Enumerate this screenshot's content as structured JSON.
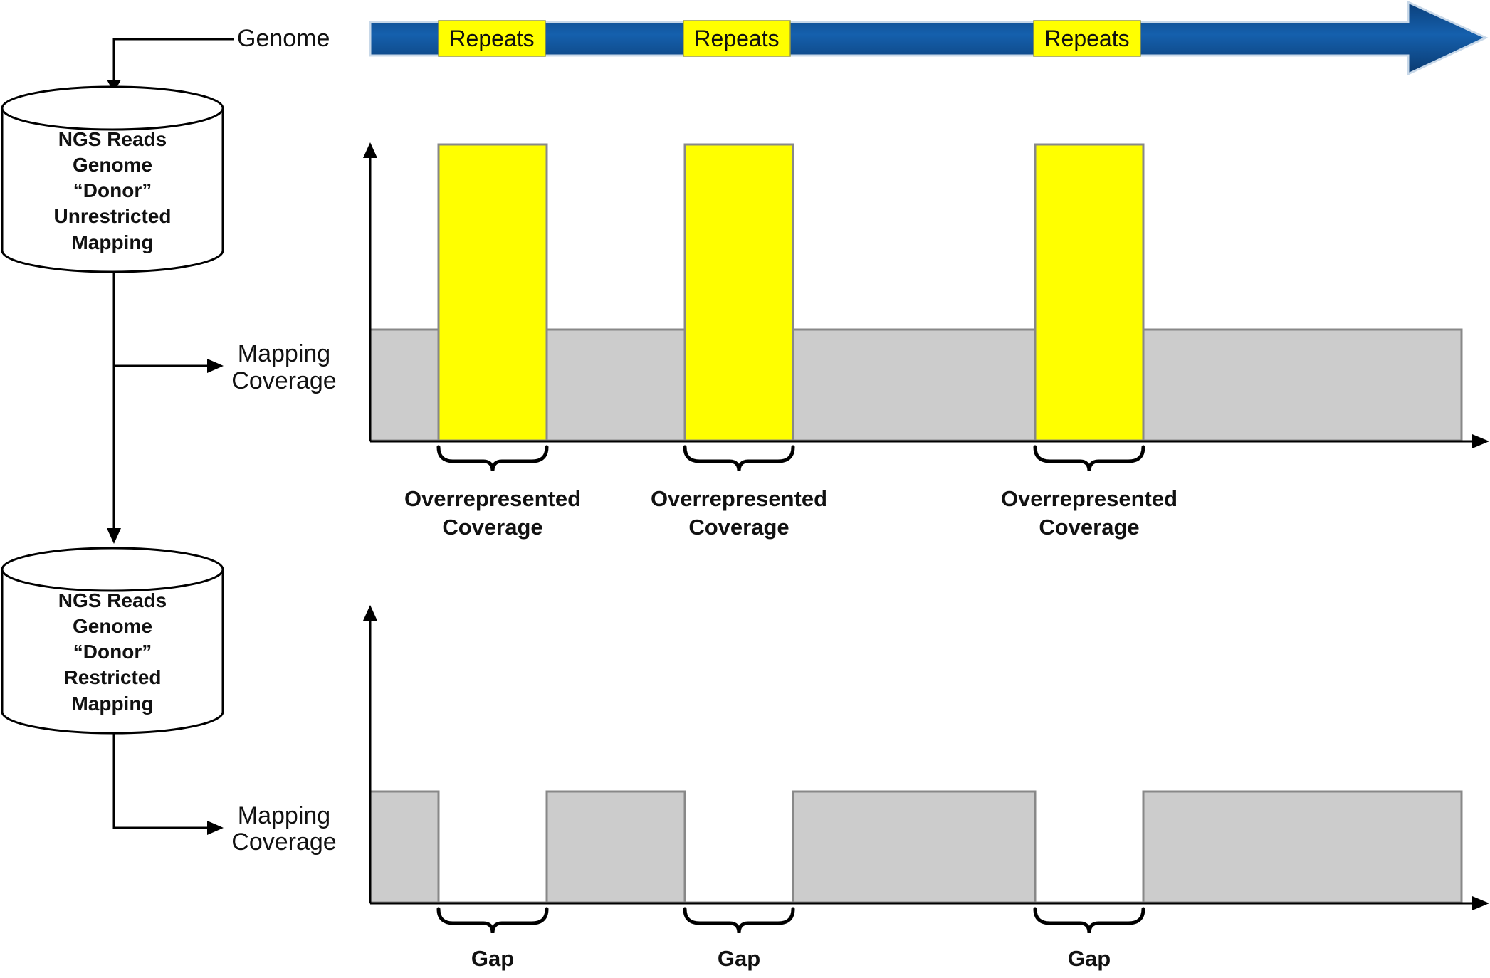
{
  "genome": {
    "label": "Genome",
    "repeats": [
      "Repeats",
      "Repeats",
      "Repeats"
    ]
  },
  "colors": {
    "genome_arrow_fill": "#0a4f96",
    "repeat_fill": "#ffff00",
    "coverage_fill": "#cccccc",
    "coverage_stroke": "#888888",
    "line": "#000000"
  },
  "cylinders": [
    {
      "lines": [
        "NGS Reads",
        "Genome",
        "“Donor”",
        "Unrestricted",
        "Mapping"
      ]
    },
    {
      "lines": [
        "NGS Reads",
        "Genome",
        "“Donor”",
        "Restricted",
        "Mapping"
      ]
    }
  ],
  "mapping_labels": [
    {
      "lines": [
        "Mapping",
        "Coverage"
      ]
    },
    {
      "lines": [
        "Mapping",
        "Coverage"
      ]
    }
  ],
  "coverage_plots": [
    {
      "profile": "repeats_overrepresented",
      "annotations": [
        {
          "lines": [
            "Overrepresented",
            "Coverage"
          ]
        },
        {
          "lines": [
            "Overrepresented",
            "Coverage"
          ]
        },
        {
          "lines": [
            "Overrepresented",
            "Coverage"
          ]
        }
      ]
    },
    {
      "profile": "repeats_gapped",
      "annotations": [
        {
          "lines": [
            "Gap"
          ]
        },
        {
          "lines": [
            "Gap"
          ]
        },
        {
          "lines": [
            "Gap"
          ]
        }
      ]
    }
  ]
}
